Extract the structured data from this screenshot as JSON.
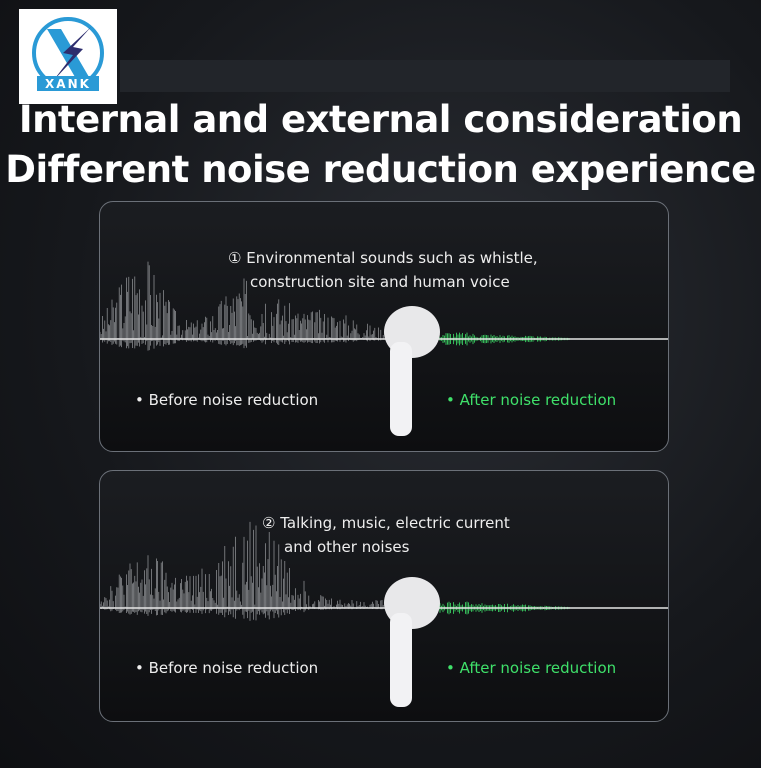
{
  "logo": {
    "text": "XANK",
    "mark": "lightning-x"
  },
  "headline": {
    "line1": "Internal and external consideration",
    "line2": "Different noise reduction experience"
  },
  "panels": [
    {
      "description_line1": "① Environmental sounds such as whistle,",
      "description_line2": "construction site and human voice",
      "before_label": "• Before noise reduction",
      "after_label": "• After noise reduction"
    },
    {
      "description_line1": "② Talking, music, electric current",
      "description_line2": "and other noises",
      "before_label": "• Before noise reduction",
      "after_label": "• After noise reduction"
    }
  ],
  "colors": {
    "after": "#3fe06a",
    "logo_blue": "#2a9ad6",
    "logo_navy": "#2d2d6e"
  }
}
